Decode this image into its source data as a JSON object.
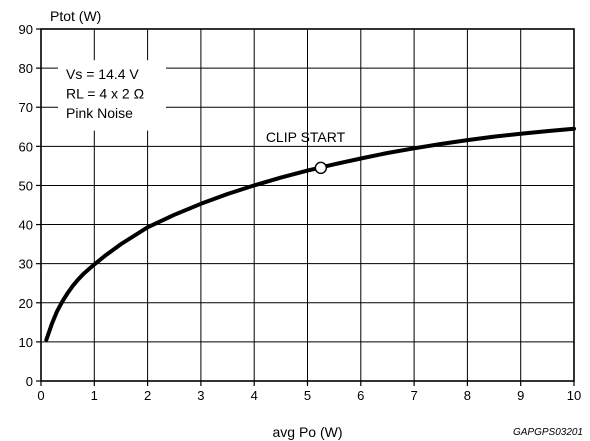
{
  "chart_data": {
    "type": "line",
    "title": "",
    "xlabel": "avg Po (W)",
    "ylabel": "Ptot (W)",
    "xlim": [
      0,
      10
    ],
    "ylim": [
      0,
      90
    ],
    "xticks": [
      0,
      1,
      2,
      3,
      4,
      5,
      6,
      7,
      8,
      9,
      10
    ],
    "yticks": [
      0,
      10,
      20,
      30,
      40,
      50,
      60,
      70,
      80,
      90
    ],
    "grid": true,
    "annotations": [
      "Vs = 14.4 V",
      "RL = 4 x 2 Ω",
      "Pink Noise"
    ],
    "marker": {
      "label": "CLIP START",
      "x": 5.25,
      "y": 54.5
    },
    "figure_code": "GAPGPS03201",
    "series": [
      {
        "x": [
          0.1,
          0.2,
          0.3,
          0.4,
          0.5,
          0.6,
          0.7,
          0.8,
          1.0,
          1.2,
          1.5,
          2.0,
          2.5,
          3.0,
          3.5,
          4.0,
          4.5,
          5.0,
          5.5,
          6.0,
          6.5,
          7.0,
          7.5,
          8.0,
          8.5,
          9.0,
          9.5,
          10.0
        ],
        "y": [
          10.5,
          14.5,
          17.8,
          20.3,
          22.5,
          24.4,
          26.0,
          27.4,
          29.8,
          32.0,
          35.0,
          39.3,
          42.5,
          45.3,
          47.8,
          50.0,
          52.0,
          53.8,
          55.4,
          56.9,
          58.3,
          59.5,
          60.6,
          61.6,
          62.5,
          63.2,
          63.9,
          64.5
        ]
      }
    ]
  }
}
